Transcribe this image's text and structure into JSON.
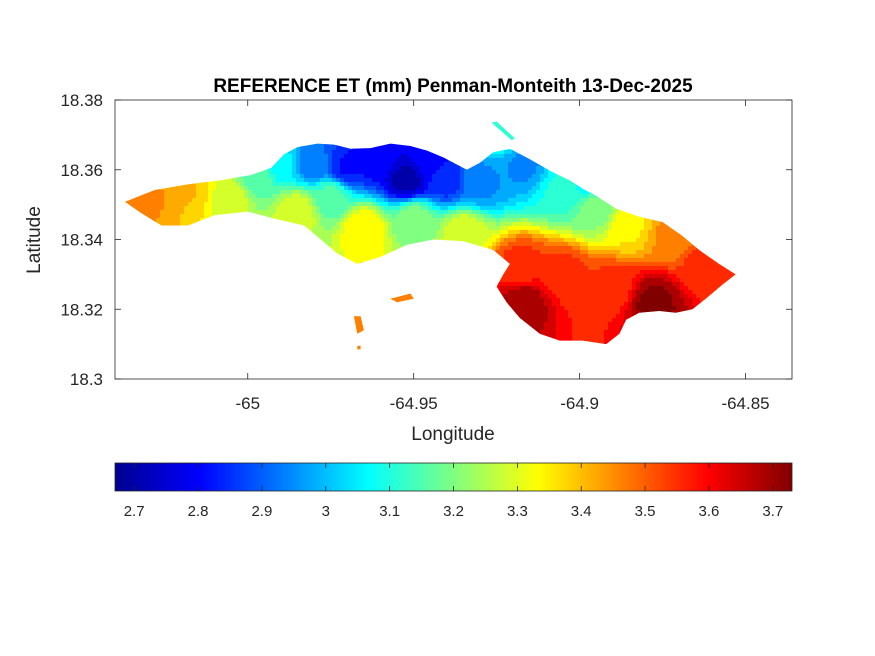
{
  "chart_data": {
    "type": "heatmap",
    "title": "REFERENCE ET (mm) Penman-Monteith 13-Dec-2025",
    "xlabel": "Longitude",
    "ylabel": "Latitude",
    "xlim": [
      -65.04,
      -64.836
    ],
    "ylim": [
      18.3,
      18.38
    ],
    "xticks": [
      "-65",
      "-64.95",
      "-64.9",
      "-64.85"
    ],
    "xtick_values": [
      -65,
      -64.95,
      -64.9,
      -64.85
    ],
    "yticks": [
      "18.3",
      "18.32",
      "18.34",
      "18.36",
      "18.38"
    ],
    "ytick_values": [
      18.3,
      18.32,
      18.34,
      18.36,
      18.38
    ],
    "grid": false,
    "colormap": "jet",
    "colorbar": {
      "orientation": "horizontal",
      "location": "bottom",
      "range": [
        2.67,
        3.73
      ],
      "ticks": [
        "2.7",
        "2.8",
        "2.9",
        "3",
        "3.1",
        "3.2",
        "3.3",
        "3.4",
        "3.5",
        "3.6",
        "3.7"
      ],
      "tick_values": [
        2.7,
        2.8,
        2.9,
        3.0,
        3.1,
        3.2,
        3.3,
        3.4,
        3.5,
        3.6,
        3.7
      ]
    },
    "outline_lonlat": [
      [
        -65.037,
        18.3508
      ],
      [
        -65.028,
        18.3542
      ],
      [
        -65.018,
        18.3558
      ],
      [
        -65.008,
        18.357
      ],
      [
        -64.999,
        18.3585
      ],
      [
        -64.993,
        18.3605
      ],
      [
        -64.989,
        18.3645
      ],
      [
        -64.985,
        18.3665
      ],
      [
        -64.979,
        18.3675
      ],
      [
        -64.974,
        18.3672
      ],
      [
        -64.969,
        18.366
      ],
      [
        -64.963,
        18.3662
      ],
      [
        -64.957,
        18.3675
      ],
      [
        -64.951,
        18.3668
      ],
      [
        -64.946,
        18.3655
      ],
      [
        -64.941,
        18.3635
      ],
      [
        -64.937,
        18.3615
      ],
      [
        -64.934,
        18.36
      ],
      [
        -64.93,
        18.362
      ],
      [
        -64.926,
        18.365
      ],
      [
        -64.921,
        18.366
      ],
      [
        -64.915,
        18.363
      ],
      [
        -64.908,
        18.3592
      ],
      [
        -64.903,
        18.357
      ],
      [
        -64.899,
        18.3545
      ],
      [
        -64.895,
        18.3525
      ],
      [
        -64.889,
        18.3488
      ],
      [
        -64.882,
        18.3465
      ],
      [
        -64.875,
        18.345
      ],
      [
        -64.869,
        18.341
      ],
      [
        -64.864,
        18.337
      ],
      [
        -64.858,
        18.333
      ],
      [
        -64.853,
        18.33
      ],
      [
        -64.857,
        18.327
      ],
      [
        -64.862,
        18.323
      ],
      [
        -64.866,
        18.32
      ],
      [
        -64.871,
        18.319
      ],
      [
        -64.876,
        18.3195
      ],
      [
        -64.882,
        18.319
      ],
      [
        -64.886,
        18.317
      ],
      [
        -64.888,
        18.313
      ],
      [
        -64.892,
        18.31
      ],
      [
        -64.899,
        18.311
      ],
      [
        -64.906,
        18.311
      ],
      [
        -64.912,
        18.313
      ],
      [
        -64.918,
        18.3175
      ],
      [
        -64.922,
        18.322
      ],
      [
        -64.925,
        18.3265
      ],
      [
        -64.923,
        18.33
      ],
      [
        -64.921,
        18.333
      ],
      [
        -64.926,
        18.337
      ],
      [
        -64.935,
        18.3395
      ],
      [
        -64.944,
        18.34
      ],
      [
        -64.952,
        18.3385
      ],
      [
        -64.96,
        18.335
      ],
      [
        -64.967,
        18.333
      ],
      [
        -64.973,
        18.336
      ],
      [
        -64.978,
        18.34
      ],
      [
        -64.983,
        18.344
      ],
      [
        -64.992,
        18.346
      ],
      [
        -65.0,
        18.348
      ],
      [
        -65.01,
        18.347
      ],
      [
        -65.018,
        18.344
      ],
      [
        -65.026,
        18.344
      ],
      [
        -65.032,
        18.3475
      ]
    ],
    "islets_lonlat": [
      [
        [
          -64.957,
          18.323
        ],
        [
          -64.951,
          18.3245
        ],
        [
          -64.95,
          18.323
        ],
        [
          -64.955,
          18.322
        ]
      ],
      [
        [
          -64.968,
          18.318
        ],
        [
          -64.966,
          18.318
        ],
        [
          -64.965,
          18.314
        ],
        [
          -64.967,
          18.313
        ]
      ],
      [
        [
          -64.967,
          18.3095
        ],
        [
          -64.966,
          18.3095
        ],
        [
          -64.966,
          18.3085
        ],
        [
          -64.967,
          18.3085
        ]
      ],
      [
        [
          -64.9265,
          18.3735
        ],
        [
          -64.925,
          18.3738
        ],
        [
          -64.9195,
          18.369
        ],
        [
          -64.9205,
          18.3685
        ]
      ]
    ],
    "field_nodes": [
      {
        "lon": -65.03,
        "lat": 18.352,
        "value": 3.45
      },
      {
        "lon": -65.018,
        "lat": 18.354,
        "value": 3.4
      },
      {
        "lon": -65.006,
        "lat": 18.352,
        "value": 3.3
      },
      {
        "lon": -64.997,
        "lat": 18.358,
        "value": 3.15
      },
      {
        "lon": -64.99,
        "lat": 18.362,
        "value": 3.05
      },
      {
        "lon": -64.98,
        "lat": 18.362,
        "value": 2.92
      },
      {
        "lon": -64.97,
        "lat": 18.361,
        "value": 2.82
      },
      {
        "lon": -64.962,
        "lat": 18.363,
        "value": 2.8
      },
      {
        "lon": -64.952,
        "lat": 18.357,
        "value": 2.72
      },
      {
        "lon": -64.94,
        "lat": 18.357,
        "value": 2.85
      },
      {
        "lon": -64.93,
        "lat": 18.356,
        "value": 2.95
      },
      {
        "lon": -64.917,
        "lat": 18.361,
        "value": 2.95
      },
      {
        "lon": -64.905,
        "lat": 18.354,
        "value": 3.1
      },
      {
        "lon": -64.895,
        "lat": 18.349,
        "value": 3.2
      },
      {
        "lon": -64.885,
        "lat": 18.344,
        "value": 3.35
      },
      {
        "lon": -64.873,
        "lat": 18.341,
        "value": 3.45
      },
      {
        "lon": -64.862,
        "lat": 18.333,
        "value": 3.55
      },
      {
        "lon": -64.878,
        "lat": 18.322,
        "value": 3.72
      },
      {
        "lon": -64.89,
        "lat": 18.326,
        "value": 3.55
      },
      {
        "lon": -64.905,
        "lat": 18.33,
        "value": 3.55
      },
      {
        "lon": -64.917,
        "lat": 18.322,
        "value": 3.7
      },
      {
        "lon": -64.918,
        "lat": 18.332,
        "value": 3.55
      },
      {
        "lon": -64.935,
        "lat": 18.342,
        "value": 3.3
      },
      {
        "lon": -64.95,
        "lat": 18.346,
        "value": 3.2
      },
      {
        "lon": -64.965,
        "lat": 18.343,
        "value": 3.35
      },
      {
        "lon": -64.975,
        "lat": 18.352,
        "value": 3.15
      },
      {
        "lon": -64.985,
        "lat": 18.348,
        "value": 3.3
      },
      {
        "lon": -64.958,
        "lat": 18.3232,
        "value": 3.48
      },
      {
        "lon": -64.966,
        "lat": 18.315,
        "value": 3.48
      },
      {
        "lon": -64.923,
        "lat": 18.371,
        "value": 3.1
      },
      {
        "lon": -64.895,
        "lat": 18.357,
        "value": 3.0
      },
      {
        "lon": -64.945,
        "lat": 18.362,
        "value": 2.8
      }
    ]
  }
}
